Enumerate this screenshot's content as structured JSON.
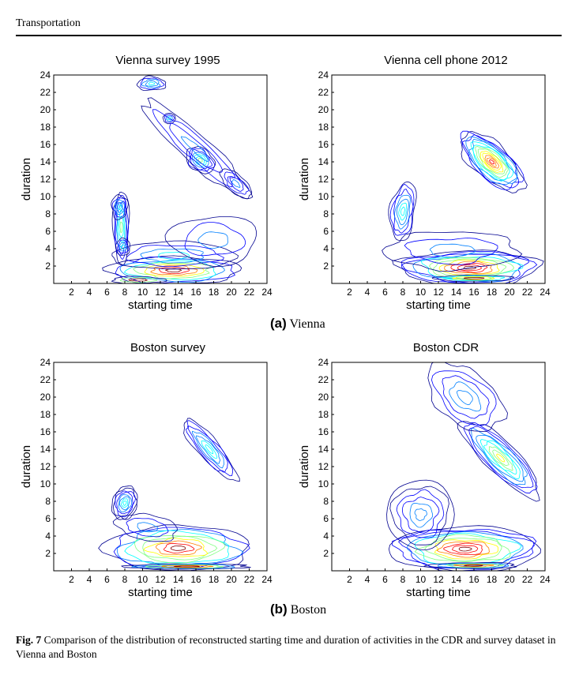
{
  "header": {
    "running_title": "Transportation"
  },
  "groups": [
    {
      "label": "(a)",
      "name": "Vienna"
    },
    {
      "label": "(b)",
      "name": "Boston"
    }
  ],
  "panels": [
    {
      "title": "Vienna survey 1995"
    },
    {
      "title": "Vienna cell phone 2012"
    },
    {
      "title": "Boston survey"
    },
    {
      "title": "Boston CDR"
    }
  ],
  "caption": {
    "label": "Fig. 7",
    "text": "Comparison of the distribution of reconstructed starting time and duration of activities in the CDR and survey dataset in Vienna and Boston"
  },
  "chart_data": [
    {
      "type": "contour",
      "title": "Vienna survey 1995",
      "xlabel": "starting time",
      "ylabel": "duration",
      "xlim": [
        0,
        24
      ],
      "ylim": [
        0,
        24
      ],
      "xticks": [
        2,
        4,
        6,
        8,
        10,
        12,
        14,
        16,
        18,
        20,
        22,
        24
      ],
      "yticks": [
        2,
        4,
        6,
        8,
        10,
        12,
        14,
        16,
        18,
        20,
        22,
        24
      ],
      "colormap": [
        "#00008f",
        "#0000ff",
        "#0080ff",
        "#00ffff",
        "#80ff80",
        "#ffff00",
        "#ff8000",
        "#ff0000",
        "#800000"
      ],
      "modes": [
        {
          "x": 9.5,
          "y": 0.5,
          "peak": "max"
        },
        {
          "x": 7.5,
          "y": 7.0,
          "peak": "medium"
        },
        {
          "x": 16.5,
          "y": 14.0,
          "peak": "medium"
        },
        {
          "x": 11.0,
          "y": 23.0,
          "peak": "medium"
        }
      ]
    },
    {
      "type": "contour",
      "title": "Vienna cell phone 2012",
      "xlabel": "starting time",
      "ylabel": "duration",
      "xlim": [
        0,
        24
      ],
      "ylim": [
        0,
        24
      ],
      "xticks": [
        2,
        4,
        6,
        8,
        10,
        12,
        14,
        16,
        18,
        20,
        22,
        24
      ],
      "yticks": [
        2,
        4,
        6,
        8,
        10,
        12,
        14,
        16,
        18,
        20,
        22,
        24
      ],
      "modes": [
        {
          "x": 16.0,
          "y": 0.6,
          "peak": "max"
        },
        {
          "x": 18.0,
          "y": 14.0,
          "peak": "high"
        },
        {
          "x": 8.0,
          "y": 9.0,
          "peak": "low"
        }
      ]
    },
    {
      "type": "contour",
      "title": "Boston survey",
      "xlabel": "starting time",
      "ylabel": "duration",
      "xlim": [
        0,
        24
      ],
      "ylim": [
        0,
        24
      ],
      "xticks": [
        2,
        4,
        6,
        8,
        10,
        12,
        14,
        16,
        18,
        20,
        22,
        24
      ],
      "yticks": [
        2,
        4,
        6,
        8,
        10,
        12,
        14,
        16,
        18,
        20,
        22,
        24
      ],
      "modes": [
        {
          "x": 17.0,
          "y": 0.4,
          "peak": "max"
        },
        {
          "x": 8.0,
          "y": 8.0,
          "peak": "medium"
        },
        {
          "x": 17.5,
          "y": 14.0,
          "peak": "low"
        }
      ]
    },
    {
      "type": "contour",
      "title": "Boston CDR",
      "xlabel": "starting time",
      "ylabel": "duration",
      "xlim": [
        0,
        24
      ],
      "ylim": [
        0,
        24
      ],
      "xticks": [
        2,
        4,
        6,
        8,
        10,
        12,
        14,
        16,
        18,
        20,
        22,
        24
      ],
      "yticks": [
        2,
        4,
        6,
        8,
        10,
        12,
        14,
        16,
        18,
        20,
        22,
        24
      ],
      "modes": [
        {
          "x": 16.0,
          "y": 0.6,
          "peak": "max"
        },
        {
          "x": 19.0,
          "y": 13.0,
          "peak": "medium"
        },
        {
          "x": 8.0,
          "y": 8.0,
          "peak": "low"
        }
      ]
    }
  ]
}
